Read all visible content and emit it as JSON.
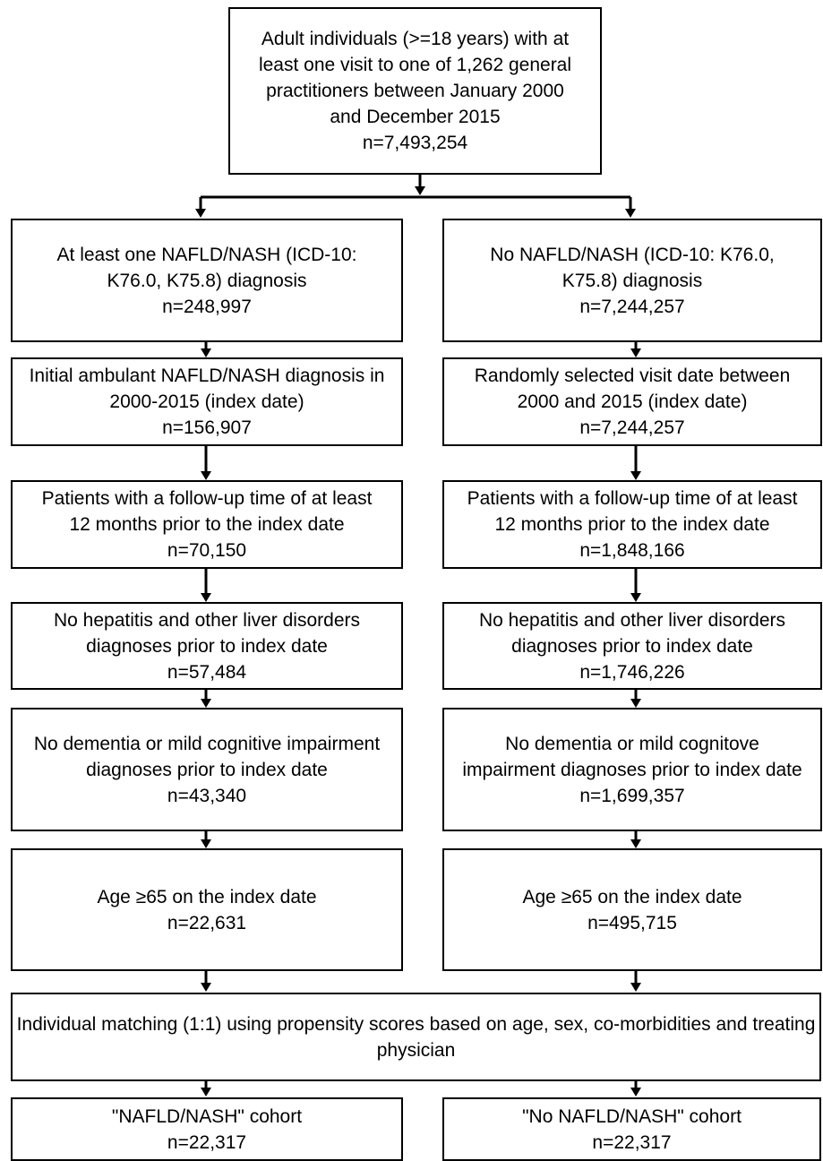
{
  "top": {
    "lines": [
      "Adult individuals (>=18 years) with at",
      "least one visit to one of 1,262 general",
      "practitioners between January 2000",
      "and December 2015"
    ],
    "count": "n=7,493,254"
  },
  "left_steps": [
    {
      "lines": [
        "At least one NAFLD/NASH (ICD-10:",
        "K76.0, K75.8) diagnosis"
      ],
      "count": "n=248,997"
    },
    {
      "lines": [
        "Initial ambulant NAFLD/NASH diagnosis in",
        "2000-2015 (index date)"
      ],
      "count": "n=156,907"
    },
    {
      "lines": [
        "Patients with a follow-up time of at least",
        "12 months prior to the index date"
      ],
      "count": "n=70,150"
    },
    {
      "lines": [
        "No hepatitis and other liver disorders",
        "diagnoses prior to index date"
      ],
      "count": "n=57,484"
    },
    {
      "lines": [
        "No dementia or mild cognitive impairment",
        "diagnoses prior to index date"
      ],
      "count": "n=43,340"
    },
    {
      "lines": [
        "Age ≥65 on the index date"
      ],
      "count": "n=22,631"
    }
  ],
  "right_steps": [
    {
      "lines": [
        "No NAFLD/NASH (ICD-10: K76.0,",
        "K75.8) diagnosis"
      ],
      "count": "n=7,244,257"
    },
    {
      "lines": [
        "Randomly selected visit date between",
        "2000 and 2015 (index date)"
      ],
      "count": "n=7,244,257"
    },
    {
      "lines": [
        "Patients with a follow-up time of at least",
        "12 months prior to the index date"
      ],
      "count": "n=1,848,166"
    },
    {
      "lines": [
        "No hepatitis and other liver disorders",
        "diagnoses prior to index date"
      ],
      "count": "n=1,746,226"
    },
    {
      "lines": [
        "No dementia or mild cognitove",
        "impairment diagnoses prior to index date"
      ],
      "count": "n=1,699,357"
    },
    {
      "lines": [
        "Age ≥65 on the index date"
      ],
      "count": "n=495,715"
    }
  ],
  "matching": {
    "text": "Individual matching (1:1) using propensity scores based on age, sex, co-morbidities and treating physician"
  },
  "cohorts": [
    {
      "name": "\"NAFLD/NASH\" cohort",
      "count": "n=22,317"
    },
    {
      "name": "\"No NAFLD/NASH\" cohort",
      "count": "n=22,317"
    }
  ]
}
